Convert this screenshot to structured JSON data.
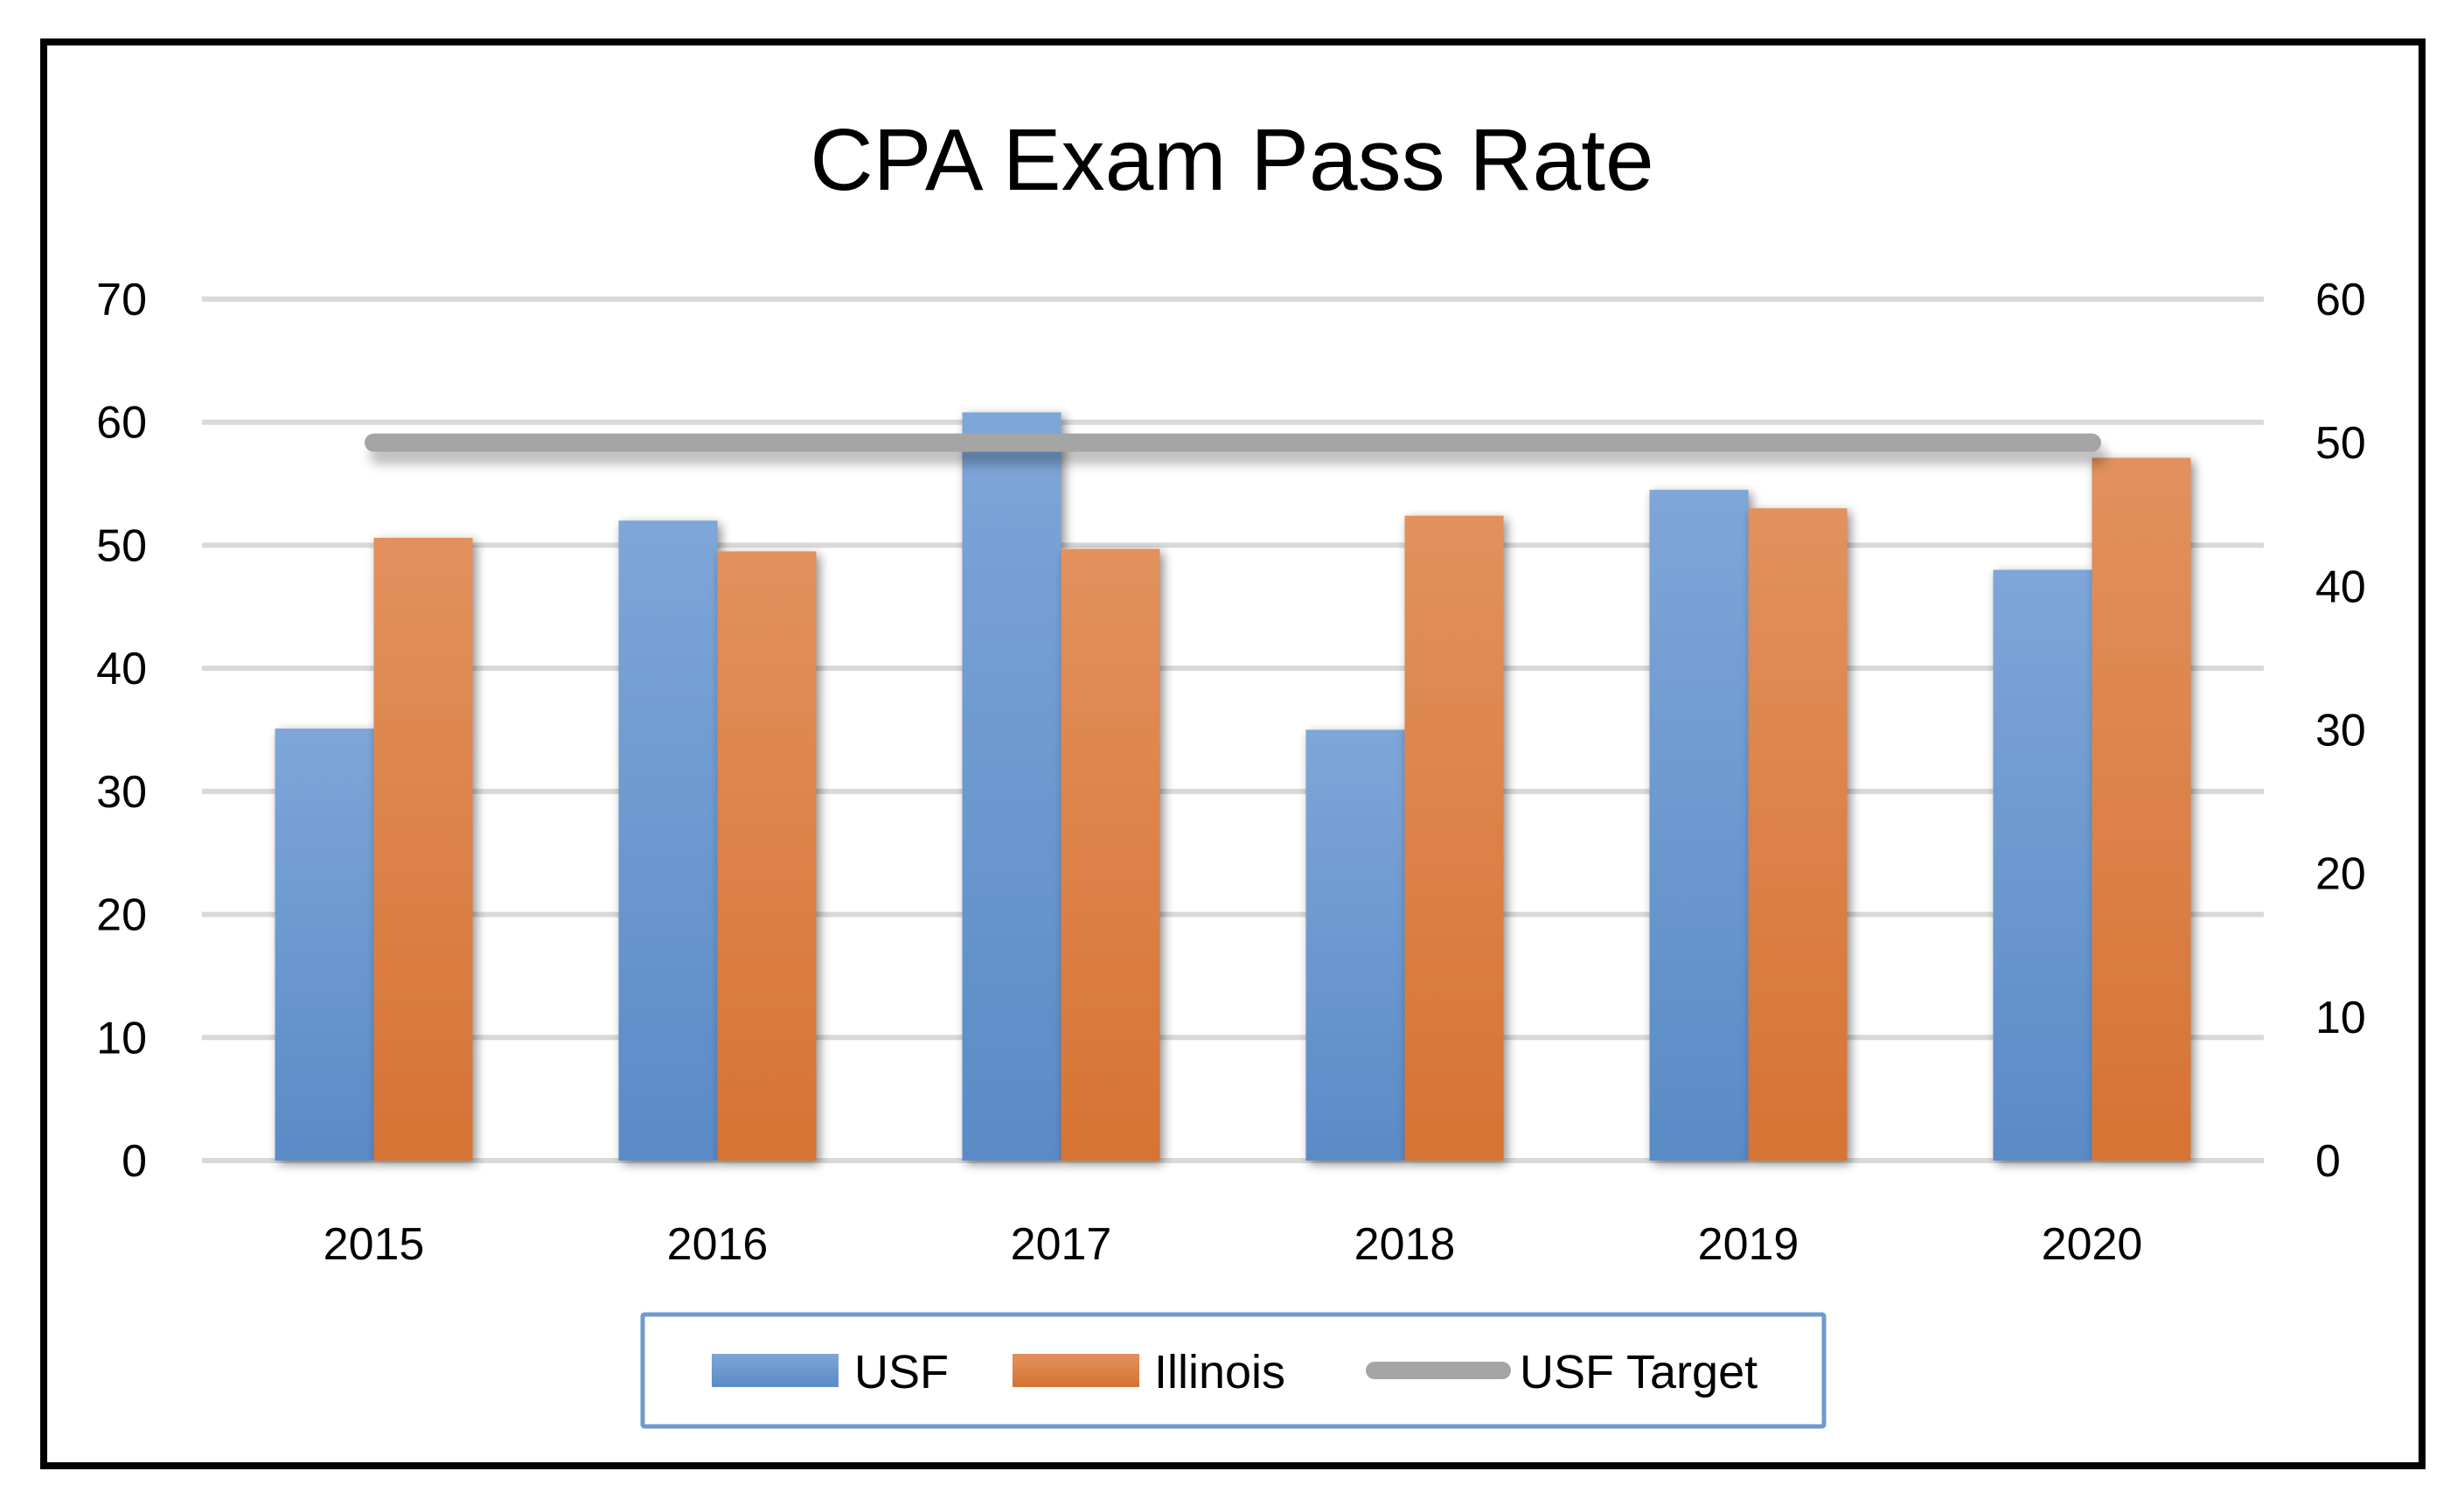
{
  "chart_data": {
    "type": "bar",
    "title": "CPA Exam Pass Rate",
    "xlabel": "",
    "ylabel": "",
    "y2label": "",
    "categories": [
      "2015",
      "2016",
      "2017",
      "2018",
      "2019",
      "2020"
    ],
    "series": [
      {
        "name": "USF",
        "type": "bar",
        "axis": "primary",
        "color": "#6a9bd4",
        "values": [
          35.1,
          52.0,
          60.8,
          35.0,
          54.5,
          48.0
        ]
      },
      {
        "name": "Illinois",
        "type": "bar",
        "axis": "primary",
        "color": "#e0813f",
        "values": [
          50.6,
          49.5,
          49.7,
          52.4,
          53.0,
          57.1
        ]
      },
      {
        "name": "USF Target",
        "type": "line",
        "axis": "secondary",
        "color": "#a5a5a5",
        "values": [
          50,
          50,
          50,
          50,
          50,
          50
        ]
      }
    ],
    "ylim": [
      0,
      70
    ],
    "yticks": [
      "0",
      "10",
      "20",
      "30",
      "40",
      "50",
      "60",
      "70"
    ],
    "y2lim": [
      0,
      60
    ],
    "y2ticks": [
      "0",
      "10",
      "20",
      "30",
      "40",
      "50",
      "60"
    ],
    "grid": true,
    "legend": {
      "position": "bottom",
      "entries": [
        "USF",
        "Illinois",
        "USF Target"
      ]
    }
  },
  "colors": {
    "usf_top": "#7ea6d8",
    "usf_bottom": "#5a8bc6",
    "illinois_top": "#e2915d",
    "illinois_bottom": "#d67334",
    "target": "#a5a5a5",
    "gridline": "#d9d9d9",
    "legend_border": "#6e9bcf",
    "frame": "#000000"
  }
}
